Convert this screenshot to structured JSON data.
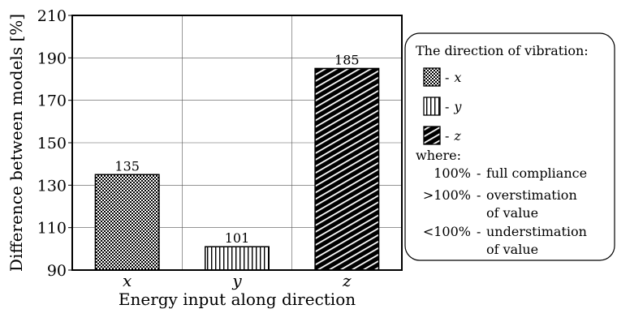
{
  "chart_data": {
    "type": "bar",
    "categories": [
      "x",
      "y",
      "z"
    ],
    "values": [
      135,
      101,
      185
    ],
    "data_labels": [
      "135",
      "101",
      "185"
    ],
    "xlabel": "Energy input along direction",
    "ylabel": "Difference between models [%]",
    "ylim": [
      90,
      210
    ],
    "yticks": [
      90,
      110,
      130,
      150,
      170,
      190,
      210
    ],
    "grid": true,
    "patterns": [
      "checker",
      "vertical-stripes",
      "diagonal-stripes"
    ],
    "legend": {
      "title": "The direction of vibration:",
      "entries": [
        {
          "dash": "-",
          "symbol": "x"
        },
        {
          "dash": "-",
          "symbol": "y"
        },
        {
          "dash": "-",
          "symbol": "z"
        }
      ],
      "where_title": "where:",
      "notes": [
        {
          "key": "100%",
          "dash": "-",
          "line1": "full compliance",
          "line2": ""
        },
        {
          "key": ">100%",
          "dash": "-",
          "line1": "overstimation",
          "line2": "of value"
        },
        {
          "key": "<100%",
          "dash": "-",
          "line1": "understimation",
          "line2": "of value"
        }
      ],
      "placement": "right"
    }
  }
}
